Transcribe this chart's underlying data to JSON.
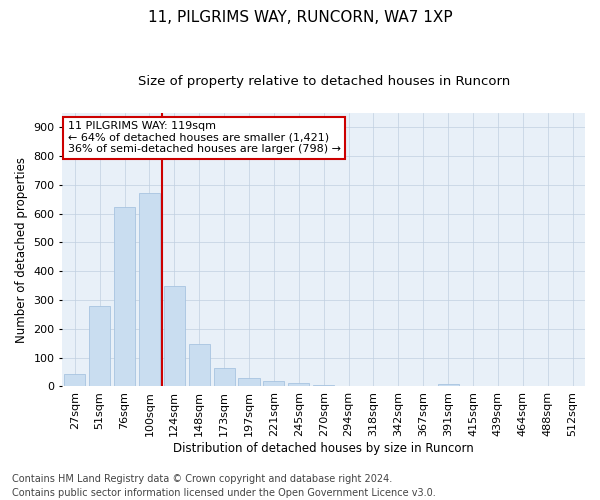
{
  "title1": "11, PILGRIMS WAY, RUNCORN, WA7 1XP",
  "title2": "Size of property relative to detached houses in Runcorn",
  "xlabel": "Distribution of detached houses by size in Runcorn",
  "ylabel": "Number of detached properties",
  "footer": "Contains HM Land Registry data © Crown copyright and database right 2024.\nContains public sector information licensed under the Open Government Licence v3.0.",
  "bar_labels": [
    "27sqm",
    "51sqm",
    "76sqm",
    "100sqm",
    "124sqm",
    "148sqm",
    "173sqm",
    "197sqm",
    "221sqm",
    "245sqm",
    "270sqm",
    "294sqm",
    "318sqm",
    "342sqm",
    "367sqm",
    "391sqm",
    "415sqm",
    "439sqm",
    "464sqm",
    "488sqm",
    "512sqm"
  ],
  "bar_values": [
    43,
    278,
    622,
    670,
    350,
    148,
    65,
    30,
    18,
    12,
    5,
    0,
    0,
    0,
    0,
    10,
    0,
    0,
    0,
    0,
    0
  ],
  "bar_color": "#c9ddf0",
  "bar_edge_color": "#a8c4e0",
  "vline_index": 4,
  "vline_color": "#cc0000",
  "annotation_text": "11 PILGRIMS WAY: 119sqm\n← 64% of detached houses are smaller (1,421)\n36% of semi-detached houses are larger (798) →",
  "annotation_box_color": "#ffffff",
  "annotation_box_edge": "#cc0000",
  "ylim": [
    0,
    950
  ],
  "yticks": [
    0,
    100,
    200,
    300,
    400,
    500,
    600,
    700,
    800,
    900
  ],
  "grid_color": "#c0d0e0",
  "bg_color": "#e8f0f8",
  "title1_fontsize": 11,
  "title2_fontsize": 9.5,
  "axis_label_fontsize": 8.5,
  "tick_fontsize": 8,
  "footer_fontsize": 7,
  "annotation_fontsize": 8
}
